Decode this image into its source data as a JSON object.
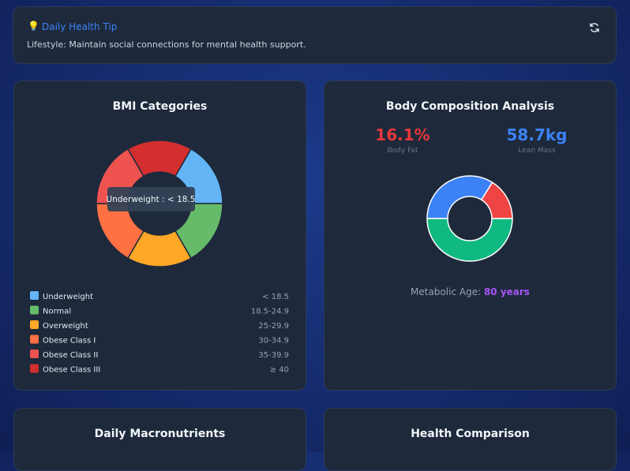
{
  "tip": {
    "icon": "💡",
    "title": "Daily Health Tip",
    "text": "Lifestyle: Maintain social connections for mental health support."
  },
  "bmi": {
    "title": "BMI Categories",
    "tooltip": "Underweight : < 18.5",
    "categories": [
      {
        "name": "Underweight",
        "range": "< 18.5",
        "color": "#64b5f6",
        "value": 16.7
      },
      {
        "name": "Normal",
        "range": "18.5-24.9",
        "color": "#66bb6a",
        "value": 16.7
      },
      {
        "name": "Overweight",
        "range": "25-29.9",
        "color": "#ffa726",
        "value": 16.7
      },
      {
        "name": "Obese Class I",
        "range": "30-34.9",
        "color": "#ff7043",
        "value": 16.7
      },
      {
        "name": "Obese Class II",
        "range": "35-39.9",
        "color": "#ef5350",
        "value": 16.7
      },
      {
        "name": "Obese Class III",
        "range": "≥ 40",
        "color": "#d32f2f",
        "value": 16.7
      }
    ]
  },
  "body": {
    "title": "Body Composition Analysis",
    "stats": [
      {
        "value": "16.1%",
        "label": "Body Fat",
        "color": "#e5383b"
      },
      {
        "value": "58.7kg",
        "label": "Lean Mass",
        "color": "#3b82f6"
      }
    ],
    "segments": [
      {
        "value": 33.9,
        "color": "#3b82f6"
      },
      {
        "value": 16.1,
        "color": "#ef4444"
      },
      {
        "value": 50,
        "color": "#10b981"
      }
    ],
    "metabolic_label": "Metabolic Age:",
    "metabolic_value": "80 years"
  },
  "bottom": {
    "left_title": "Daily Macronutrients",
    "right_title": "Health Comparison"
  }
}
